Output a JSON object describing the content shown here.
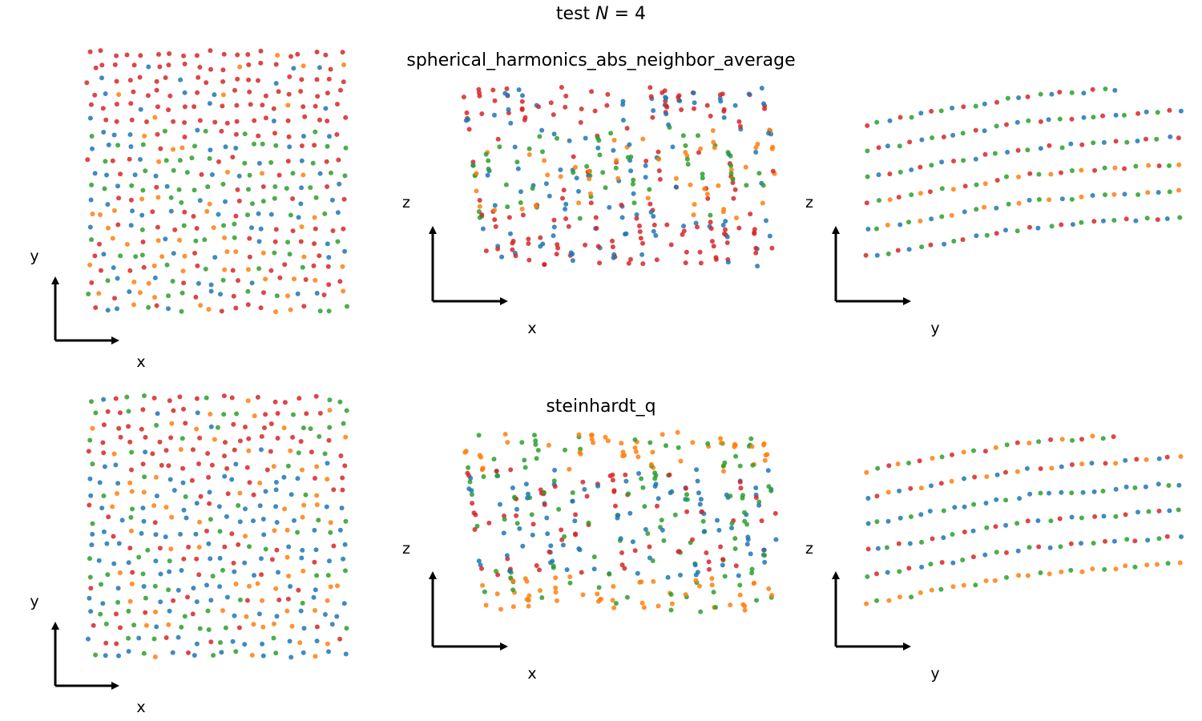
{
  "suptitle": {
    "prefix": "test ",
    "var": "N",
    "suffix": " = 4"
  },
  "colors": {
    "c0": "#1f77b4",
    "c1": "#ff7f0e",
    "c2": "#2ca02c",
    "c3": "#d62728"
  },
  "chart_data": [
    {
      "type": "scatter",
      "title": "spherical_harmonics_abs_neighbor_average",
      "row_labels": [
        "spherical_harmonics_abs_neighbor_average",
        "steinhardt_q"
      ],
      "projections": [
        {
          "xlabel": "x",
          "ylabel": "y"
        },
        {
          "xlabel": "x",
          "ylabel": "z"
        },
        {
          "xlabel": "y",
          "ylabel": "z"
        }
      ],
      "cluster_colors": [
        "#1f77b4",
        "#ff7f0e",
        "#2ca02c",
        "#d62728"
      ],
      "axes_visible": false,
      "grid": false
    },
    {
      "type": "scatter",
      "title": "steinhardt_q",
      "projections": [
        {
          "xlabel": "x",
          "ylabel": "y"
        },
        {
          "xlabel": "x",
          "ylabel": "z"
        },
        {
          "xlabel": "y",
          "ylabel": "z"
        }
      ],
      "cluster_colors": [
        "#1f77b4",
        "#ff7f0e",
        "#2ca02c",
        "#d62728"
      ],
      "axes_visible": false,
      "grid": false
    }
  ]
}
